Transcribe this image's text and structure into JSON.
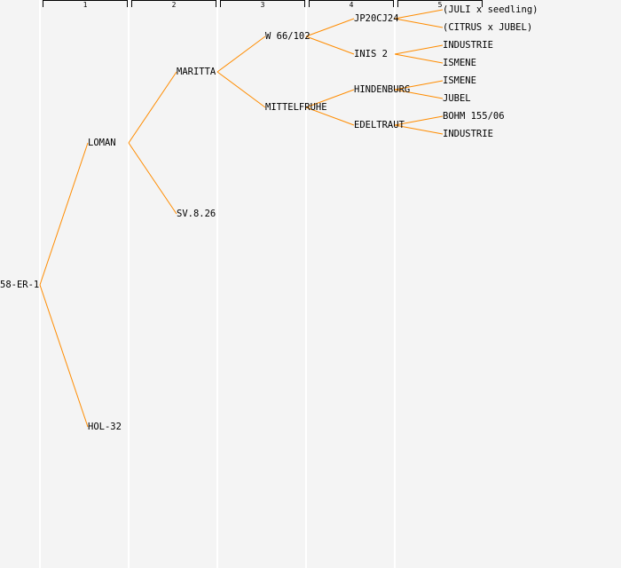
{
  "generations": [
    "1",
    "2",
    "3",
    "4",
    "5"
  ],
  "line_color": "#ff8c00",
  "tree": {
    "name": "58-ER-1",
    "children": [
      {
        "name": "LOMAN",
        "children": [
          {
            "name": "MARITTA",
            "children": [
              {
                "name": "W 66/102",
                "children": [
                  {
                    "name": "JP20CJ24",
                    "children": [
                      {
                        "name": "(JULI x seedling)"
                      },
                      {
                        "name": "(CITRUS x JUBEL)"
                      }
                    ]
                  },
                  {
                    "name": "INIS 2",
                    "children": [
                      {
                        "name": "INDUSTRIE"
                      },
                      {
                        "name": "ISMENE"
                      }
                    ]
                  }
                ]
              },
              {
                "name": "MITTELFRUHE",
                "children": [
                  {
                    "name": "HINDENBURG",
                    "children": [
                      {
                        "name": "ISMENE"
                      },
                      {
                        "name": "JUBEL"
                      }
                    ]
                  },
                  {
                    "name": "EDELTRAUT",
                    "children": [
                      {
                        "name": "BOHM 155/06"
                      },
                      {
                        "name": "INDUSTRIE"
                      }
                    ]
                  }
                ]
              }
            ]
          },
          {
            "name": "SV.8.26"
          }
        ]
      },
      {
        "name": "HOL-32"
      }
    ]
  }
}
